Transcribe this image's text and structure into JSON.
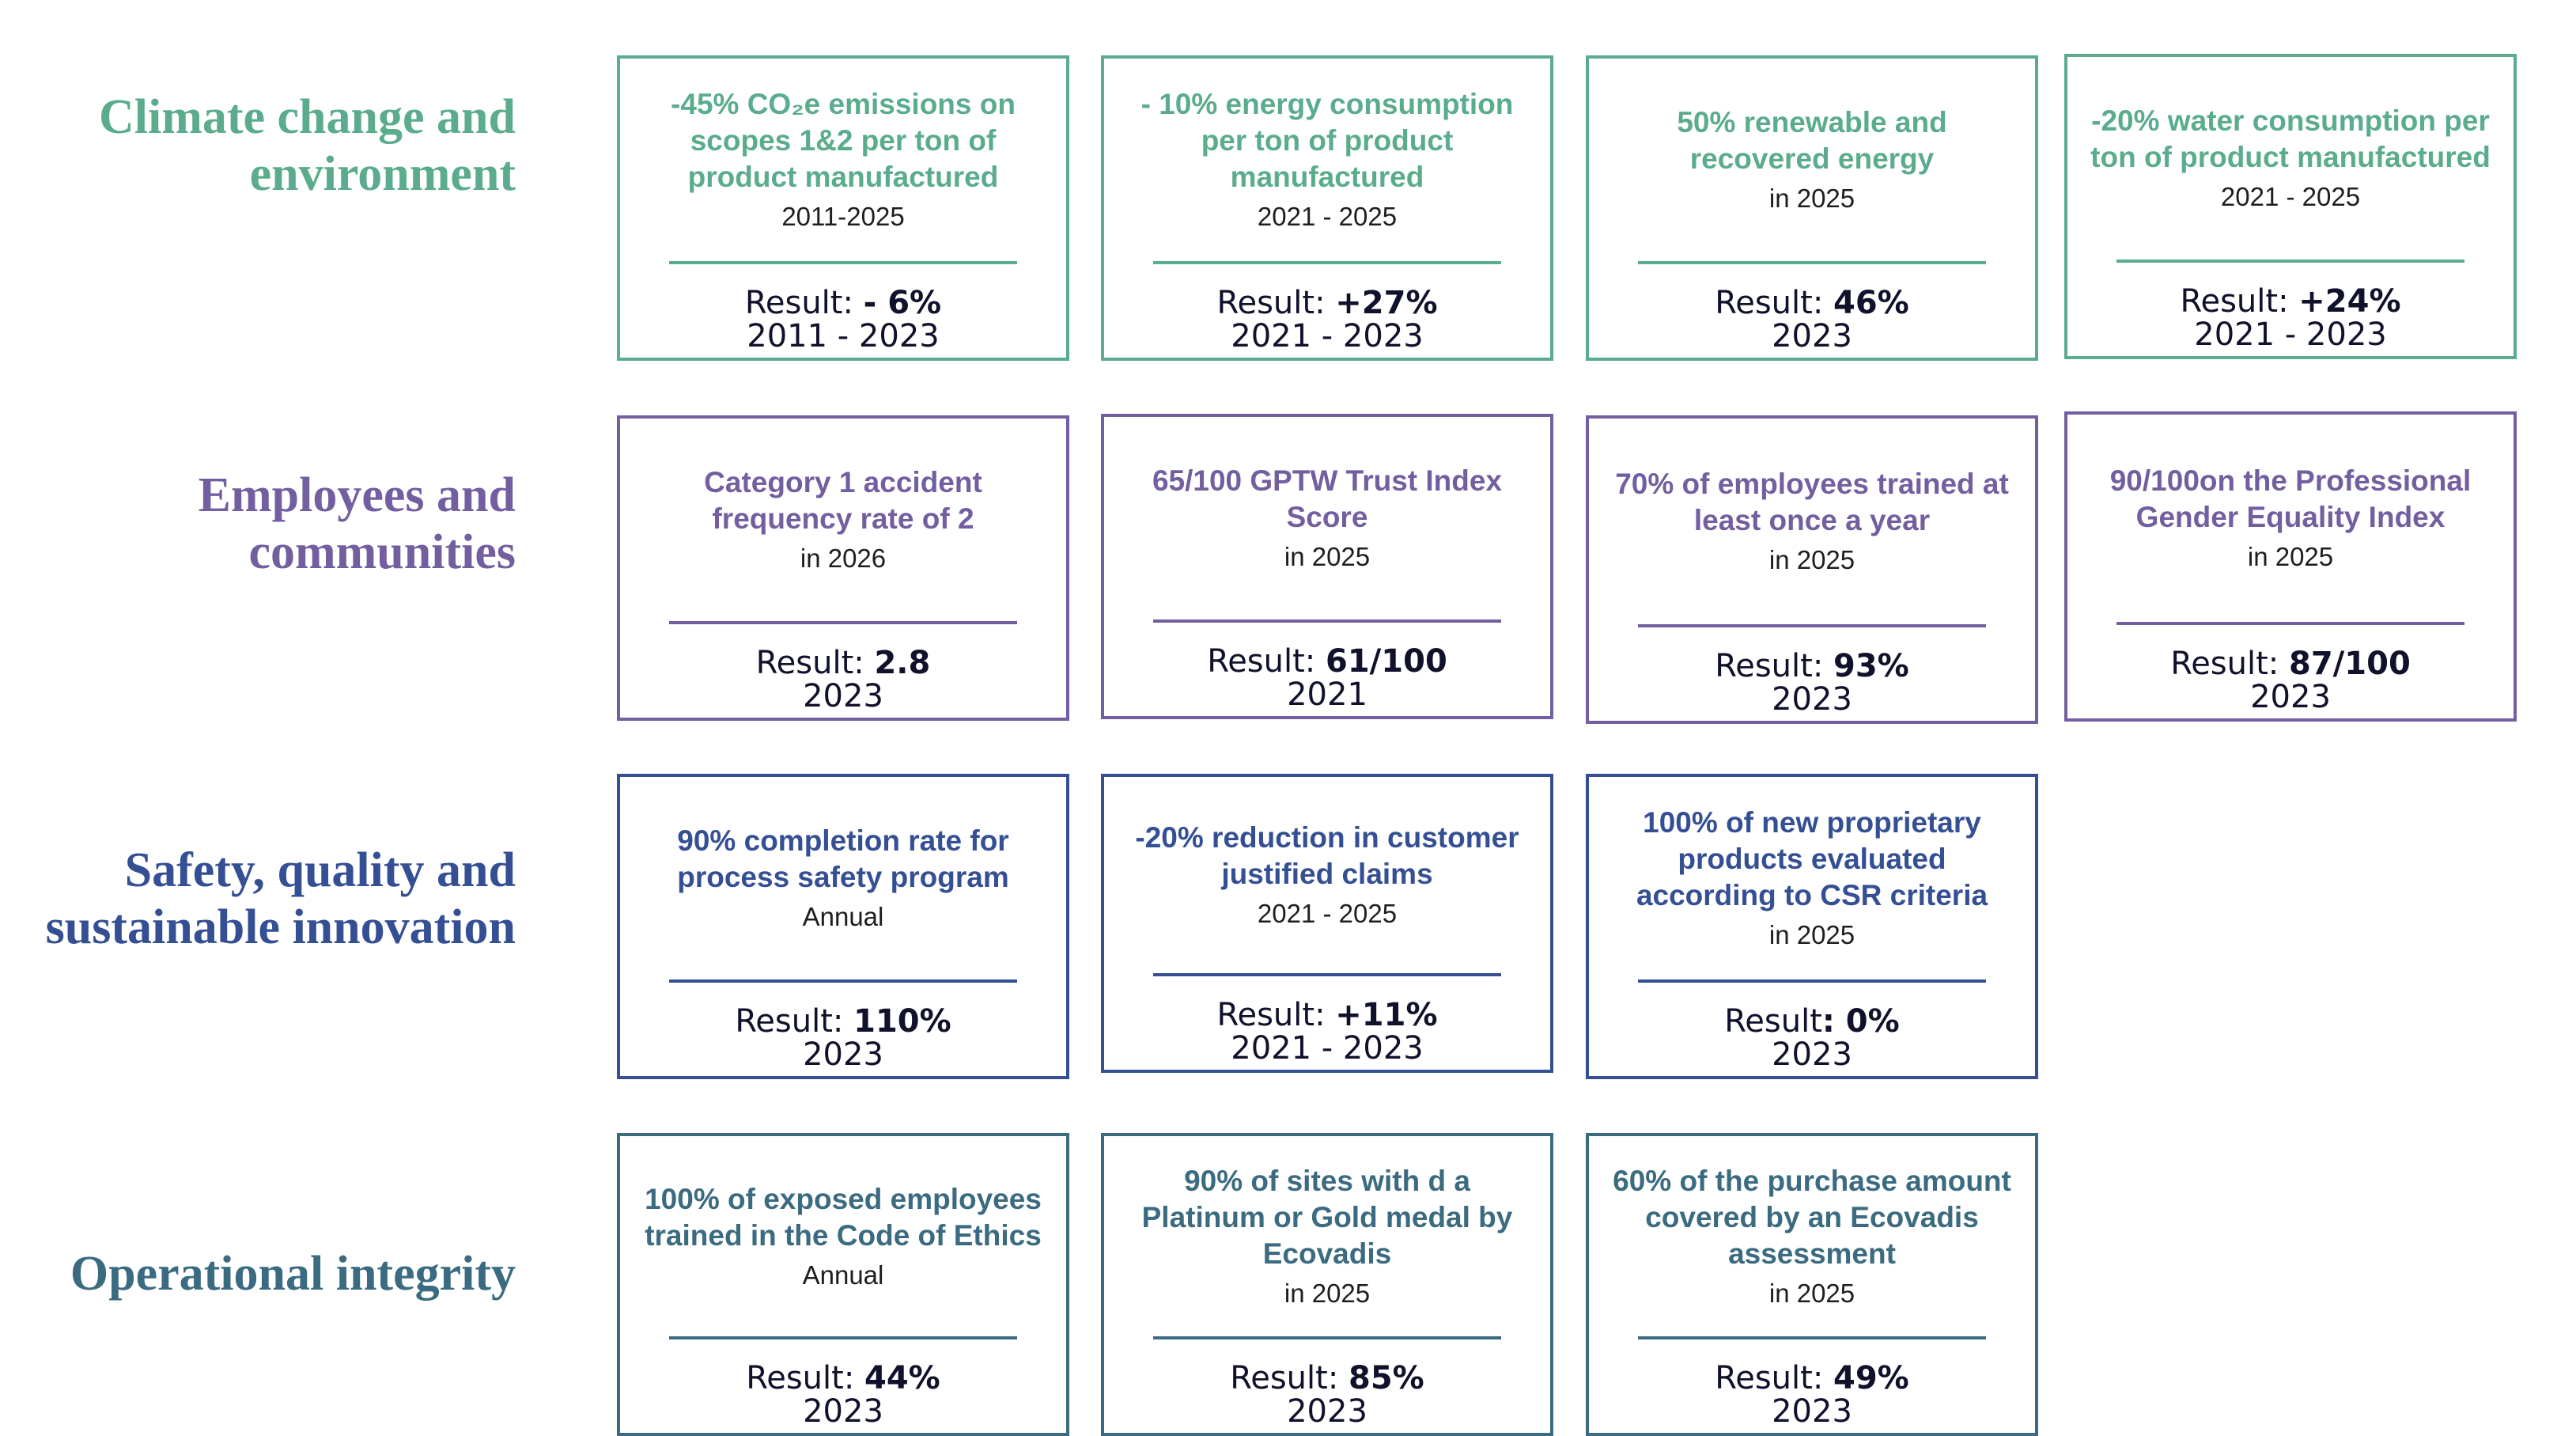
{
  "colors": {
    "climate": "#5aac8c",
    "employees": "#735ea0",
    "safety": "#344f94",
    "integrity": "#3b6b80",
    "result_text": "#10112a"
  },
  "rows": [
    {
      "title": "Climate change and environment",
      "cards": [
        {
          "goal": "-45% CO₂e emissions on scopes 1&2 per ton of product manufactured",
          "period": "2011-2025",
          "result_label": "Result: ",
          "result_value": "- 6%",
          "result_year": "2011 - 2023"
        },
        {
          "goal": "- 10% energy consumption per ton of product manufactured",
          "period": "2021 - 2025",
          "result_label": "Result: ",
          "result_value": "+27%",
          "result_year": "2021 - 2023"
        },
        {
          "goal": "50% renewable and recovered energy",
          "period": "in 2025",
          "result_label": "Result: ",
          "result_value": "46%",
          "result_year": "2023"
        },
        {
          "goal": "-20% water consumption per ton of product manufactured",
          "period": "2021 - 2025",
          "result_label": "Result: ",
          "result_value": "+24%",
          "result_year": "2021 - 2023"
        }
      ]
    },
    {
      "title": "Employees and communities",
      "cards": [
        {
          "goal": "Category 1 accident frequency rate of 2",
          "period": "in 2026",
          "result_label": "Result: ",
          "result_value": "2.8",
          "result_year": "2023"
        },
        {
          "goal": "65/100 GPTW Trust Index Score",
          "period": "in 2025",
          "result_label": "Result: ",
          "result_value": "61/100",
          "result_year": "2021"
        },
        {
          "goal": "70% of employees trained at least once a year",
          "period": "in 2025",
          "result_label": "Result: ",
          "result_value": "93%",
          "result_year": "2023"
        },
        {
          "goal": "90/100on the Professional Gender Equality Index",
          "period": "in 2025",
          "result_label": "Result: ",
          "result_value": "87/100",
          "result_year": "2023"
        }
      ]
    },
    {
      "title": "Safety, quality and sustainable innovation",
      "cards": [
        {
          "goal": "90% completion rate for process safety program",
          "period": "Annual",
          "result_label": "Result: ",
          "result_value": "110%",
          "result_year": "2023"
        },
        {
          "goal": "-20% reduction in customer justified claims",
          "period": "2021 - 2025",
          "result_label": "Result: ",
          "result_value": "+11%",
          "result_year": "2021 - 2023"
        },
        {
          "goal": "100% of new proprietary products evaluated according to CSR criteria",
          "period": "in 2025",
          "result_label": "Result",
          "result_value": ": 0%",
          "result_year": "2023"
        }
      ]
    },
    {
      "title": "Operational integrity",
      "cards": [
        {
          "goal": "100% of exposed employees trained in the Code of Ethics",
          "period": "Annual",
          "result_label": "Result: ",
          "result_value": "44%",
          "result_year": "2023"
        },
        {
          "goal": "90% of sites with d a Platinum or Gold medal by Ecovadis",
          "period": "in 2025",
          "result_label": "Result: ",
          "result_value": "85%",
          "result_year": "2023"
        },
        {
          "goal": "60% of the purchase amount covered by an Ecovadis assessment",
          "period": "in 2025",
          "result_label": "Result: ",
          "result_value": "49%",
          "result_year": "2023"
        }
      ]
    }
  ]
}
